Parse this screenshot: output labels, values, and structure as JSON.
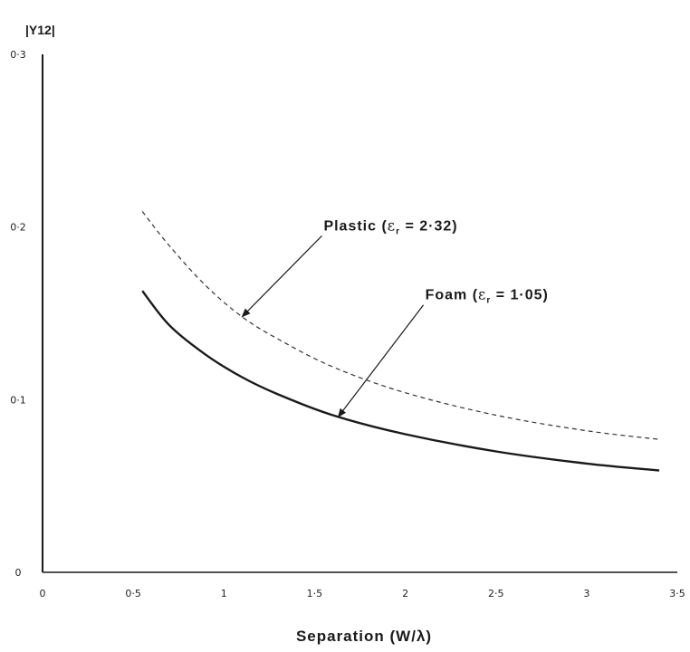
{
  "chart_data": {
    "type": "line",
    "title": "",
    "xlabel": "Separation (W/λ)",
    "ylabel": "|Y12|",
    "xlim": [
      0,
      3.5
    ],
    "ylim": [
      0,
      0.3
    ],
    "x_ticks": [
      "0",
      "0·5",
      "1",
      "1·5",
      "2",
      "2·5",
      "3",
      "3·5"
    ],
    "y_ticks": [
      "0",
      "0·1",
      "0·2",
      "0·3"
    ],
    "grid": false,
    "series": [
      {
        "name": "Plastic (εr = 2·32)",
        "style": "dashed",
        "color": "#333333",
        "x": [
          0.55,
          0.7,
          0.9,
          1.1,
          1.3,
          1.6,
          2.0,
          2.5,
          3.0,
          3.4
        ],
        "y": [
          0.209,
          0.189,
          0.166,
          0.148,
          0.135,
          0.119,
          0.104,
          0.091,
          0.082,
          0.077
        ]
      },
      {
        "name": "Foam (εr = 1·05)",
        "style": "solid",
        "color": "#1a1a1a",
        "x": [
          0.55,
          0.7,
          0.9,
          1.1,
          1.3,
          1.6,
          2.0,
          2.5,
          3.0,
          3.4
        ],
        "y": [
          0.163,
          0.143,
          0.126,
          0.113,
          0.103,
          0.091,
          0.08,
          0.07,
          0.063,
          0.059
        ]
      }
    ],
    "annotations": [
      {
        "label_prefix": "Plastic (",
        "epsilon": "ε",
        "sub": "r",
        "label_suffix": " = 2·32)",
        "arrow_to": [
          1.1,
          0.148
        ],
        "text_anchor_xy": [
          1.55,
          0.198
        ]
      },
      {
        "label_prefix": "Foam (",
        "epsilon": "ε",
        "sub": "r",
        "label_suffix": " = 1·05)",
        "arrow_to": [
          1.63,
          0.09
        ],
        "text_anchor_xy": [
          2.11,
          0.158
        ]
      }
    ]
  }
}
